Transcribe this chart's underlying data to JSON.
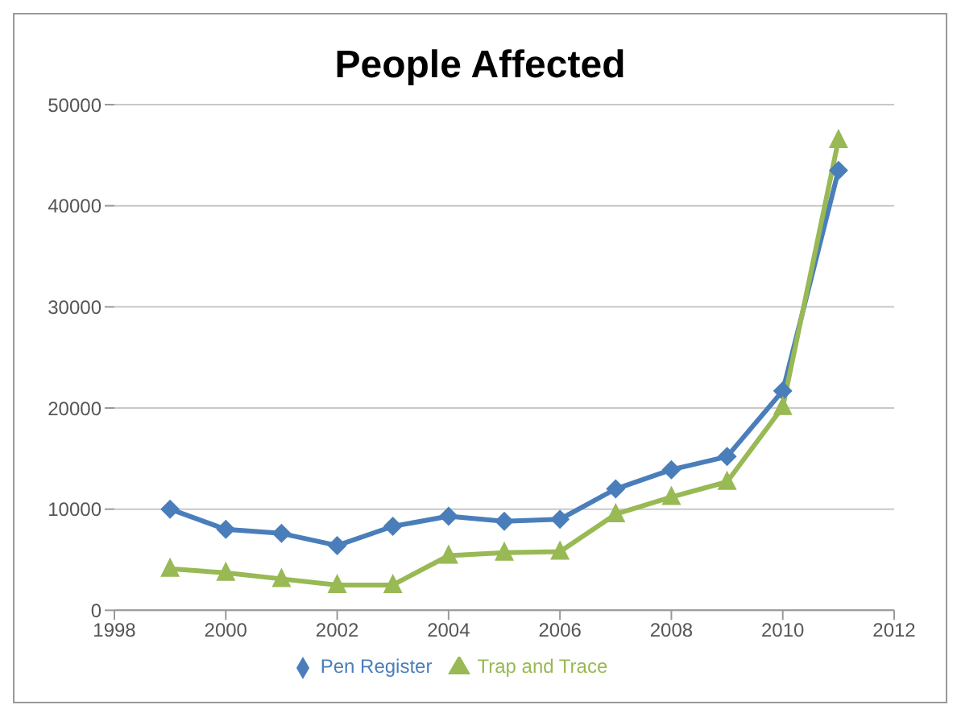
{
  "chart_data": {
    "type": "line",
    "title": "People Affected",
    "x": [
      1999,
      2000,
      2001,
      2002,
      2003,
      2004,
      2005,
      2006,
      2007,
      2008,
      2009,
      2010,
      2011
    ],
    "xlim": [
      1998,
      2012
    ],
    "xticks": [
      1998,
      2000,
      2002,
      2004,
      2006,
      2008,
      2010,
      2012
    ],
    "ylim": [
      0,
      50000
    ],
    "yticks": [
      0,
      10000,
      20000,
      30000,
      40000,
      50000
    ],
    "grid": "y",
    "legend": "bottom",
    "line_style": "solid",
    "series": [
      {
        "name": "Pen Register",
        "color": "#4a7ebb",
        "marker": "diamond",
        "values": [
          10000,
          8000,
          7600,
          6400,
          8300,
          9300,
          8800,
          9000,
          12000,
          13900,
          15200,
          21700,
          43500
        ]
      },
      {
        "name": "Trap and Trace",
        "color": "#98b954",
        "marker": "triangle",
        "values": [
          4100,
          3700,
          3100,
          2500,
          2500,
          5400,
          5700,
          5800,
          9500,
          11200,
          12700,
          20100,
          46500
        ]
      }
    ]
  }
}
